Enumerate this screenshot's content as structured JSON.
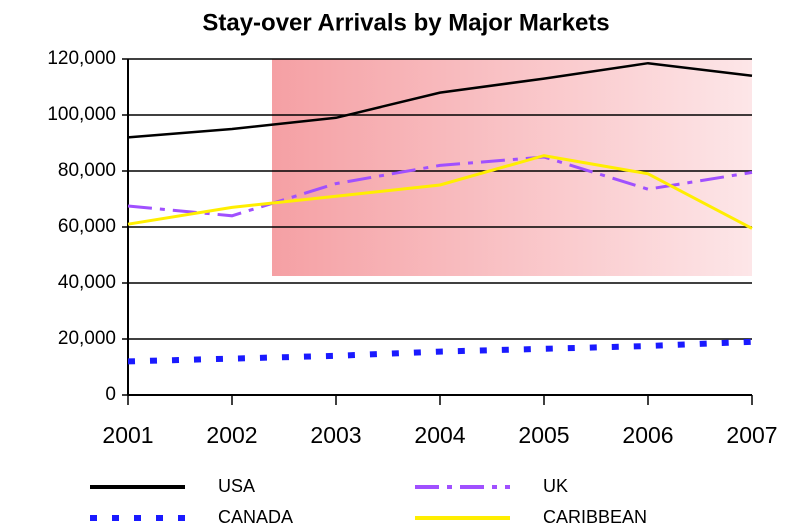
{
  "chart_data": {
    "type": "line",
    "title": "Stay-over Arrivals by Major Markets",
    "categories": [
      "2001",
      "2002",
      "2003",
      "2004",
      "2005",
      "2006",
      "2007"
    ],
    "series": [
      {
        "name": "USA",
        "color": "#000000",
        "values": [
          92000,
          95000,
          99000,
          108000,
          113000,
          118500,
          114000
        ]
      },
      {
        "name": "UK",
        "color": "#a050ff",
        "values": [
          67500,
          64000,
          75500,
          82000,
          85000,
          73500,
          79500
        ]
      },
      {
        "name": "CANADA",
        "color": "#1a1aff",
        "values": [
          12000,
          13000,
          14000,
          15500,
          16500,
          17500,
          19000
        ]
      },
      {
        "name": "CARIBBEAN",
        "color": "#ffee00",
        "values": [
          61000,
          67000,
          71000,
          75000,
          85500,
          79000,
          59500
        ]
      }
    ],
    "ylim": [
      0,
      120000
    ],
    "yticks": [
      0,
      {
        "value": 20000,
        "label": "20,000"
      },
      {
        "value": 40000,
        "label": "40,000"
      },
      {
        "value": 60000,
        "label": "60,000"
      },
      {
        "value": 80000,
        "label": "80,000"
      },
      {
        "value": 100000,
        "label": "100,000"
      },
      {
        "value": 120000,
        "label": "120,000"
      }
    ],
    "grid": true
  }
}
